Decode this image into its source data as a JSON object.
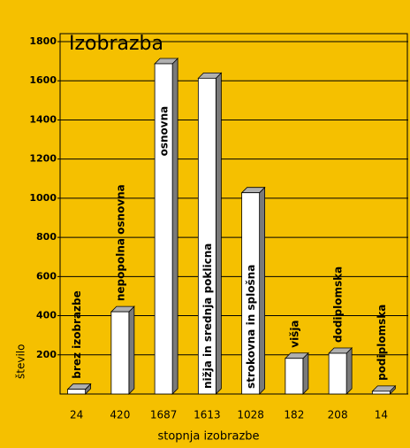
{
  "chart_data": {
    "type": "bar",
    "title": "Izobrazba",
    "categories": [
      "brez izobrazbe",
      "nepopolna osnovna",
      "osnovna",
      "nižja in srednja poklicna",
      "strokovna in splošna",
      "višja",
      "dodiplomska",
      "podiplomska"
    ],
    "values": [
      24,
      420,
      1687,
      1613,
      1028,
      182,
      208,
      14
    ],
    "color": "#ffffff",
    "y_label": "število",
    "x_label": "stopnja izobrazbe",
    "ylim": [
      0,
      1800
    ],
    "yticks": [
      200,
      400,
      600,
      800,
      1000,
      1200,
      1400,
      1600,
      1800
    ],
    "grid": true
  }
}
